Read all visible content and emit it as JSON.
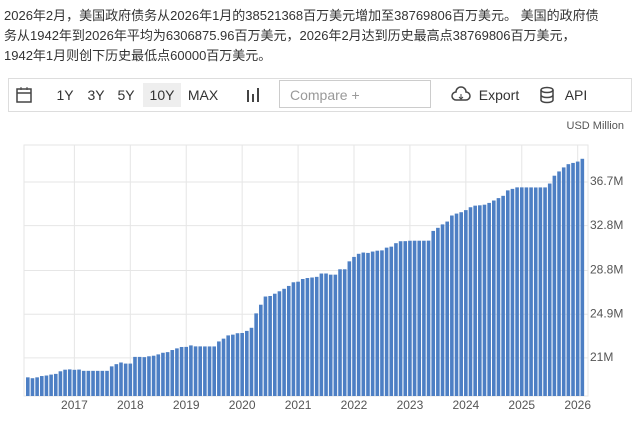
{
  "description": [
    "2026年2月，美国政府债务从2026年1月的38521368百万美元增加至38769806百万美元。 美国的政府债",
    "务从1942年到2026年平均为6306875.96百万美元，2026年2月达到历史最高点38769806百万美元，",
    "1942年1月则创下历史最低点60000百万美元。"
  ],
  "toolbar": {
    "ranges": [
      "1Y",
      "3Y",
      "5Y",
      "10Y",
      "MAX"
    ],
    "compare_placeholder": "Compare +",
    "export": "Export",
    "api": "API"
  },
  "chart_data": {
    "type": "bar",
    "unit": "USD Million",
    "color": "#4d7fc4",
    "grid": true,
    "categories": [
      null,
      null,
      null,
      null,
      null,
      null,
      null,
      null,
      null,
      null,
      "2017",
      null,
      null,
      null,
      null,
      null,
      null,
      null,
      null,
      null,
      null,
      null,
      "2018",
      null,
      null,
      null,
      null,
      null,
      null,
      null,
      null,
      null,
      null,
      null,
      "2019",
      null,
      null,
      null,
      null,
      null,
      null,
      null,
      null,
      null,
      null,
      null,
      "2020",
      null,
      null,
      null,
      null,
      null,
      null,
      null,
      null,
      null,
      null,
      null,
      "2021",
      null,
      null,
      null,
      null,
      null,
      null,
      null,
      null,
      null,
      null,
      null,
      "2022",
      null,
      null,
      null,
      null,
      null,
      null,
      null,
      null,
      null,
      null,
      null,
      "2023",
      null,
      null,
      null,
      null,
      null,
      null,
      null,
      null,
      null,
      null,
      null,
      "2024",
      null,
      null,
      null,
      null,
      null,
      null,
      null,
      null,
      null,
      null,
      null,
      "2025",
      null,
      null,
      null,
      null,
      null,
      null,
      null,
      null,
      null,
      null,
      null,
      "2026",
      null
    ],
    "values": [
      19264939,
      19187387,
      19265452,
      19381591,
      19427695,
      19510296,
      19573445,
      19805715,
      19948106,
      19976827,
      19937293,
      19959594,
      19846429,
      19845889,
      19845988,
      19844554,
      19844994,
      19844968,
      20244900,
      20442474,
      20590390,
      20492874,
      20493729,
      21089843,
      21089643,
      21068269,
      21145232,
      21195071,
      21313101,
      21458784,
      21516058,
      21702312,
      21850063,
      21974096,
      21982416,
      22115466,
      22027882,
      22027890,
      22023802,
      22023251,
      22024006,
      22469062,
      22719402,
      23008351,
      23076120,
      23201380,
      23223813,
      23409972,
      23686889,
      24974099,
      25746831,
      26477150,
      26525186,
      26728546,
      26945391,
      27167210,
      27422458,
      27747798,
      27801924,
      28041398,
      28128910,
      28173981,
      28233545,
      28529436,
      28532948,
      28428919,
      28428918,
      28908765,
      28908823,
      29617215,
      30012386,
      30290049,
      30401359,
      30369155,
      30490150,
      30568582,
      30594951,
      30840003,
      30928912,
      31238184,
      31412541,
      31419689,
      31455921,
      31459227,
      31458303,
      31457934,
      31464418,
      32332274,
      32608574,
      32914378,
      33167334,
      33707434,
      33879353,
      34001493,
      34188733,
      34445669,
      34587155,
      34617169,
      34673063,
      34831634,
      35045604,
      35260431,
      35464674,
      35950316,
      36084759,
      36218605,
      36219017,
      36214796,
      36215385,
      36209926,
      36214566,
      36215000,
      36560000,
      37260000,
      37640000,
      38000000,
      38290000,
      38400000,
      38521368,
      38769806
    ],
    "ylim": [
      17600000,
      40000000
    ],
    "yticks": [
      {
        "value": 21000000,
        "label": "21M"
      },
      {
        "value": 24900000,
        "label": "24.9M"
      },
      {
        "value": 28800000,
        "label": "28.8M"
      },
      {
        "value": 32800000,
        "label": "32.8M"
      },
      {
        "value": 36700000,
        "label": "36.7M"
      }
    ]
  }
}
